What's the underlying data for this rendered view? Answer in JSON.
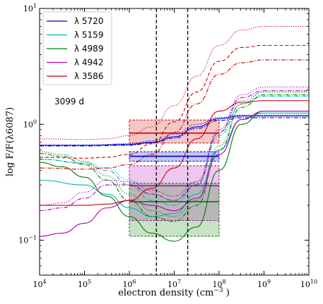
{
  "chart_data": {
    "type": "line",
    "xlabel": "electron density (cm$^{-3}$)",
    "xlabel_text": "electron density (cm",
    "xlabel_sup": "−3",
    "xlabel_close": " )",
    "ylabel": "log F/F(λ6087)",
    "xscale": "log",
    "yscale": "log",
    "xlim": [
      10000,
      10000000000
    ],
    "ylim": [
      0.05,
      10
    ],
    "x_ticks": [
      {
        "value": 10000,
        "base": "10",
        "exp": "4"
      },
      {
        "value": 100000,
        "base": "10",
        "exp": "5"
      },
      {
        "value": 1000000,
        "base": "10",
        "exp": "6"
      },
      {
        "value": 10000000,
        "base": "10",
        "exp": "7"
      },
      {
        "value": 100000000,
        "base": "10",
        "exp": "8"
      },
      {
        "value": 1000000000,
        "base": "10",
        "exp": "9"
      },
      {
        "value": 10000000000,
        "base": "10",
        "exp": "10"
      }
    ],
    "y_ticks": [
      {
        "value": 0.1,
        "base": "10",
        "exp": "−1"
      },
      {
        "value": 1,
        "base": "10",
        "exp": "0"
      },
      {
        "value": 10,
        "base": "10",
        "exp": "1"
      }
    ],
    "annotation": "3099 d",
    "vlines": [
      4000000,
      20000000
    ],
    "legend_position": "top-left",
    "legend": [
      {
        "label": "λ 5720",
        "color": "#0000cc"
      },
      {
        "label": "λ 5159",
        "color": "#00b3b3"
      },
      {
        "label": "λ 4989",
        "color": "#007a00"
      },
      {
        "label": "λ 4942",
        "color": "#b300b3"
      },
      {
        "label": "λ 3586",
        "color": "#cc0000"
      }
    ],
    "boxes": [
      {
        "name": "λ 3586",
        "color": "#cc0000",
        "x": [
          1000000,
          100000000
        ],
        "y_low": 0.69,
        "y_high": 1.09,
        "y_mid": 0.84
      },
      {
        "name": "λ 5720",
        "color": "#0000cc",
        "x": [
          1000000,
          100000000
        ],
        "y_low": 0.48,
        "y_high": 0.58,
        "y_mid": 0.53
      },
      {
        "name": "λ 4942",
        "color": "#b300b3",
        "x": [
          1000000,
          100000000
        ],
        "y_low": 0.148,
        "y_high": 0.44,
        "y_mid": 0.295
      },
      {
        "name": "λ 4989",
        "color": "#007a00",
        "x": [
          1000000,
          100000000
        ],
        "y_low": 0.108,
        "y_high": 0.31,
        "y_mid": 0.215
      }
    ],
    "series": [
      {
        "color": "#0000cc",
        "dash": "solid",
        "x": [
          4,
          5,
          6,
          6.5,
          7,
          7.5,
          8,
          8.5,
          9,
          10
        ],
        "y": [
          0.66,
          0.66,
          0.67,
          0.7,
          0.78,
          0.95,
          1.12,
          1.18,
          1.18,
          1.18
        ]
      },
      {
        "color": "#0000cc",
        "dash": "dotted",
        "x": [
          4,
          5,
          6,
          6.5,
          7,
          7.5,
          8,
          8.5,
          9,
          10
        ],
        "y": [
          0.66,
          0.66,
          0.68,
          0.72,
          0.82,
          1.0,
          1.15,
          1.2,
          1.2,
          1.2
        ]
      },
      {
        "color": "#0000cc",
        "dash": "dashdot",
        "x": [
          4,
          5,
          6,
          6.5,
          7,
          7.5,
          8,
          8.5,
          9,
          10
        ],
        "y": [
          0.65,
          0.65,
          0.66,
          0.69,
          0.76,
          0.92,
          1.08,
          1.14,
          1.14,
          1.14
        ]
      },
      {
        "color": "#00b3b3",
        "dash": "solid",
        "x": [
          4,
          5,
          5.5,
          6,
          6.5,
          7,
          7.5,
          8,
          8.5,
          9,
          10
        ],
        "y": [
          0.33,
          0.3,
          0.25,
          0.19,
          0.16,
          0.17,
          0.25,
          0.6,
          1.1,
          1.25,
          1.25
        ]
      },
      {
        "color": "#00b3b3",
        "dash": "dotted",
        "x": [
          4,
          5,
          5.5,
          6,
          6.5,
          7,
          7.5,
          8,
          8.5,
          9,
          10
        ],
        "y": [
          0.5,
          0.47,
          0.42,
          0.33,
          0.25,
          0.22,
          0.32,
          0.85,
          1.6,
          1.9,
          1.9
        ]
      },
      {
        "color": "#00b3b3",
        "dash": "dashdot",
        "x": [
          4,
          5,
          5.5,
          6,
          6.5,
          7,
          7.5,
          8,
          8.5,
          9,
          10
        ],
        "y": [
          0.5,
          0.46,
          0.4,
          0.3,
          0.22,
          0.2,
          0.3,
          0.8,
          1.5,
          1.75,
          1.75
        ]
      },
      {
        "color": "#007a00",
        "dash": "solid",
        "x": [
          4,
          4.5,
          5,
          5.5,
          6,
          6.5,
          7,
          7.5,
          8,
          8.5,
          9,
          10
        ],
        "y": [
          0.47,
          0.43,
          0.35,
          0.24,
          0.16,
          0.115,
          0.098,
          0.13,
          0.4,
          1.0,
          1.3,
          1.3
        ]
      },
      {
        "color": "#007a00",
        "dash": "dotted",
        "x": [
          4,
          4.5,
          5,
          5.5,
          6,
          6.5,
          7,
          7.5,
          8,
          8.5,
          9,
          10
        ],
        "y": [
          0.58,
          0.55,
          0.48,
          0.36,
          0.25,
          0.18,
          0.16,
          0.22,
          0.65,
          1.5,
          1.9,
          1.9
        ]
      },
      {
        "color": "#007a00",
        "dash": "dashdot",
        "x": [
          4,
          4.5,
          5,
          5.5,
          6,
          6.5,
          7,
          7.5,
          8,
          8.5,
          9,
          10
        ],
        "y": [
          0.56,
          0.53,
          0.45,
          0.33,
          0.22,
          0.16,
          0.145,
          0.2,
          0.6,
          1.4,
          1.8,
          1.8
        ]
      },
      {
        "color": "#b300b3",
        "dash": "solid",
        "x": [
          4,
          4.5,
          5,
          5.5,
          6,
          6.5,
          7,
          7.5,
          8,
          8.5,
          9,
          10
        ],
        "y": [
          0.108,
          0.115,
          0.14,
          0.19,
          0.22,
          0.2,
          0.18,
          0.23,
          0.55,
          1.1,
          1.3,
          1.3
        ]
      },
      {
        "color": "#b300b3",
        "dash": "dotted",
        "x": [
          4,
          4.5,
          5,
          5.5,
          6,
          6.5,
          7,
          7.5,
          8,
          8.5,
          9,
          10
        ],
        "y": [
          0.2,
          0.21,
          0.26,
          0.33,
          0.32,
          0.27,
          0.24,
          0.32,
          0.9,
          1.8,
          2.1,
          2.1
        ]
      },
      {
        "color": "#b300b3",
        "dash": "dashdot",
        "x": [
          4,
          4.5,
          5,
          5.5,
          6,
          6.5,
          7,
          7.5,
          8,
          8.5,
          9,
          10
        ],
        "y": [
          0.18,
          0.19,
          0.23,
          0.3,
          0.3,
          0.25,
          0.22,
          0.3,
          0.85,
          1.7,
          1.95,
          1.95
        ]
      },
      {
        "color": "#cc0000",
        "dash": "solid",
        "x": [
          4,
          5,
          5.5,
          6,
          6.5,
          7,
          7.5,
          8,
          8.5,
          9,
          10
        ],
        "y": [
          0.2,
          0.2,
          0.205,
          0.22,
          0.28,
          0.42,
          0.75,
          1.3,
          1.55,
          1.6,
          1.6
        ]
      },
      {
        "color": "#cc0000",
        "dash": "dotted",
        "x": [
          4,
          5,
          5.5,
          6,
          6.5,
          7,
          7.5,
          8,
          8.5,
          9,
          10
        ],
        "y": [
          0.75,
          0.74,
          0.75,
          0.8,
          0.95,
          1.45,
          2.6,
          4.8,
          6.5,
          7.0,
          7.0
        ]
      },
      {
        "color": "#cc0000",
        "dash": "dashed",
        "x": [
          4,
          5,
          5.5,
          6,
          6.5,
          7,
          7.5,
          8,
          8.5,
          9,
          10
        ],
        "y": [
          0.52,
          0.51,
          0.52,
          0.55,
          0.68,
          1.05,
          1.9,
          3.5,
          4.6,
          4.8,
          4.8
        ]
      },
      {
        "color": "#cc0000",
        "dash": "dashdot",
        "x": [
          4,
          5,
          5.5,
          6,
          6.5,
          7,
          7.5,
          8,
          8.5,
          9,
          10
        ],
        "y": [
          0.42,
          0.41,
          0.42,
          0.45,
          0.55,
          0.85,
          1.5,
          2.7,
          3.4,
          3.6,
          3.6
        ]
      }
    ]
  }
}
